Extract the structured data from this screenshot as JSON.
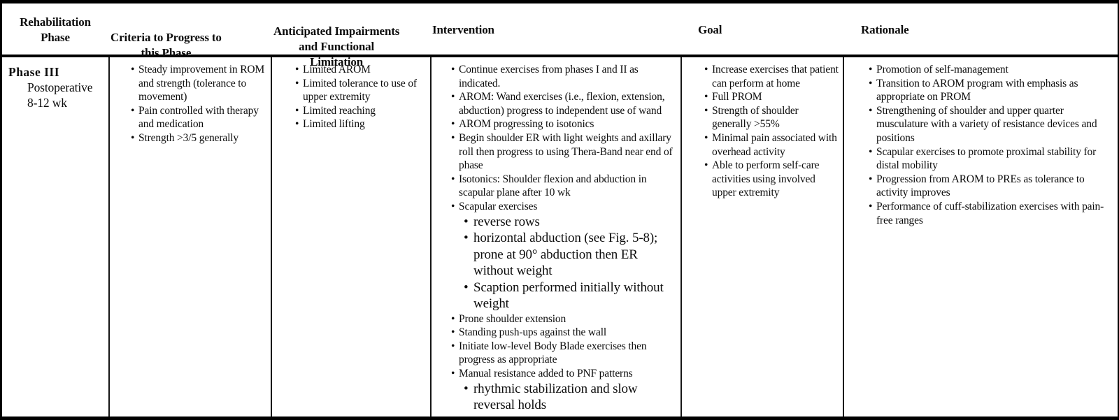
{
  "table": {
    "headers": {
      "phase": "Rehabilitation\nPhase",
      "criteria": "Criteria to Progress to\nthis Phase",
      "impairments": "Anticipated Impairments\nand Functional\nLimitation",
      "intervention": "Intervention",
      "goal": "Goal",
      "rationale": "Rationale"
    },
    "row": {
      "phase": {
        "title": "Phase III",
        "subtitle": "Postoperative\n8-12 wk"
      },
      "criteria": [
        "Steady improvement in ROM and strength (tolerance to movement)",
        "Pain controlled with therapy and medication",
        "Strength >3/5 generally"
      ],
      "impairments": [
        "Limited AROM",
        "Limited tolerance to use of upper extremity",
        "Limited reaching",
        "Limited lifting"
      ],
      "intervention": {
        "items": [
          "Continue exercises from phases I and II as indicated.",
          "AROM: Wand exercises (i.e., flexion, extension, abduction) progress to independent use of wand",
          "AROM progressing to isotonics",
          "Begin shoulder ER with light weights and axillary roll then progress to using Thera-Band near end of phase",
          "Isotonics: Shoulder flexion and abduction in scapular plane after 10 wk",
          "Scapular exercises",
          "Prone shoulder extension",
          "Standing push-ups against the wall",
          "Initiate low-level Body Blade exercises then progress as appropriate",
          "Manual resistance added to PNF patterns"
        ],
        "scapular_sub": [
          "reverse rows",
          "horizontal abduction (see Fig. 5-8); prone at 90° abduction then ER without weight",
          "Scaption performed initially without weight"
        ],
        "pnf_sub": [
          "rhythmic stabilization and slow reversal holds"
        ]
      },
      "goal": [
        "Increase exercises that patient can perform at home",
        "Full PROM",
        "Strength of shoulder generally >55%",
        "Minimal pain associated with overhead activity",
        "Able to perform self-care activities using involved upper extremity"
      ],
      "rationale": [
        "Promotion of self-management",
        "Transition to AROM program with emphasis as appropriate on PROM",
        "Strengthening of shoulder and upper quarter musculature with a variety of resistance devices and positions",
        "Scapular exercises to promote proximal stability for distal mobility",
        "Progression from AROM to PREs as tolerance to activity improves",
        "Performance of cuff-stabilization exercises with pain-free ranges"
      ]
    }
  }
}
